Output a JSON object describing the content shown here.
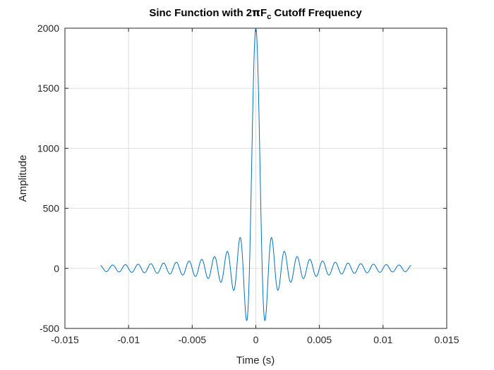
{
  "chart_data": {
    "type": "line",
    "title": {
      "prefix": "Sinc Function with 2",
      "pi": "π",
      "f": "F",
      "sub": "c",
      "suffix": " Cutoff Frequency"
    },
    "xlabel": "Time (s)",
    "ylabel": "Amplitude",
    "xlim": [
      -0.015,
      0.015
    ],
    "ylim": [
      -500,
      2000
    ],
    "xticks": [
      -0.015,
      -0.01,
      -0.005,
      0,
      0.005,
      0.01,
      0.015
    ],
    "xtick_labels": [
      "-0.015",
      "-0.01",
      "-0.005",
      "0",
      "0.005",
      "0.01",
      "0.015"
    ],
    "yticks": [
      -500,
      0,
      500,
      1000,
      1500,
      2000
    ],
    "ytick_labels": [
      "-500",
      "0",
      "500",
      "1000",
      "1500",
      "2000"
    ],
    "grid": true,
    "series": [
      {
        "color": "#0072bd",
        "function": "2000*sinc(2000*t)",
        "t_range": [
          -0.0122,
          0.0122
        ],
        "peak": 2000,
        "cutoff_hz": 1000
      }
    ]
  }
}
